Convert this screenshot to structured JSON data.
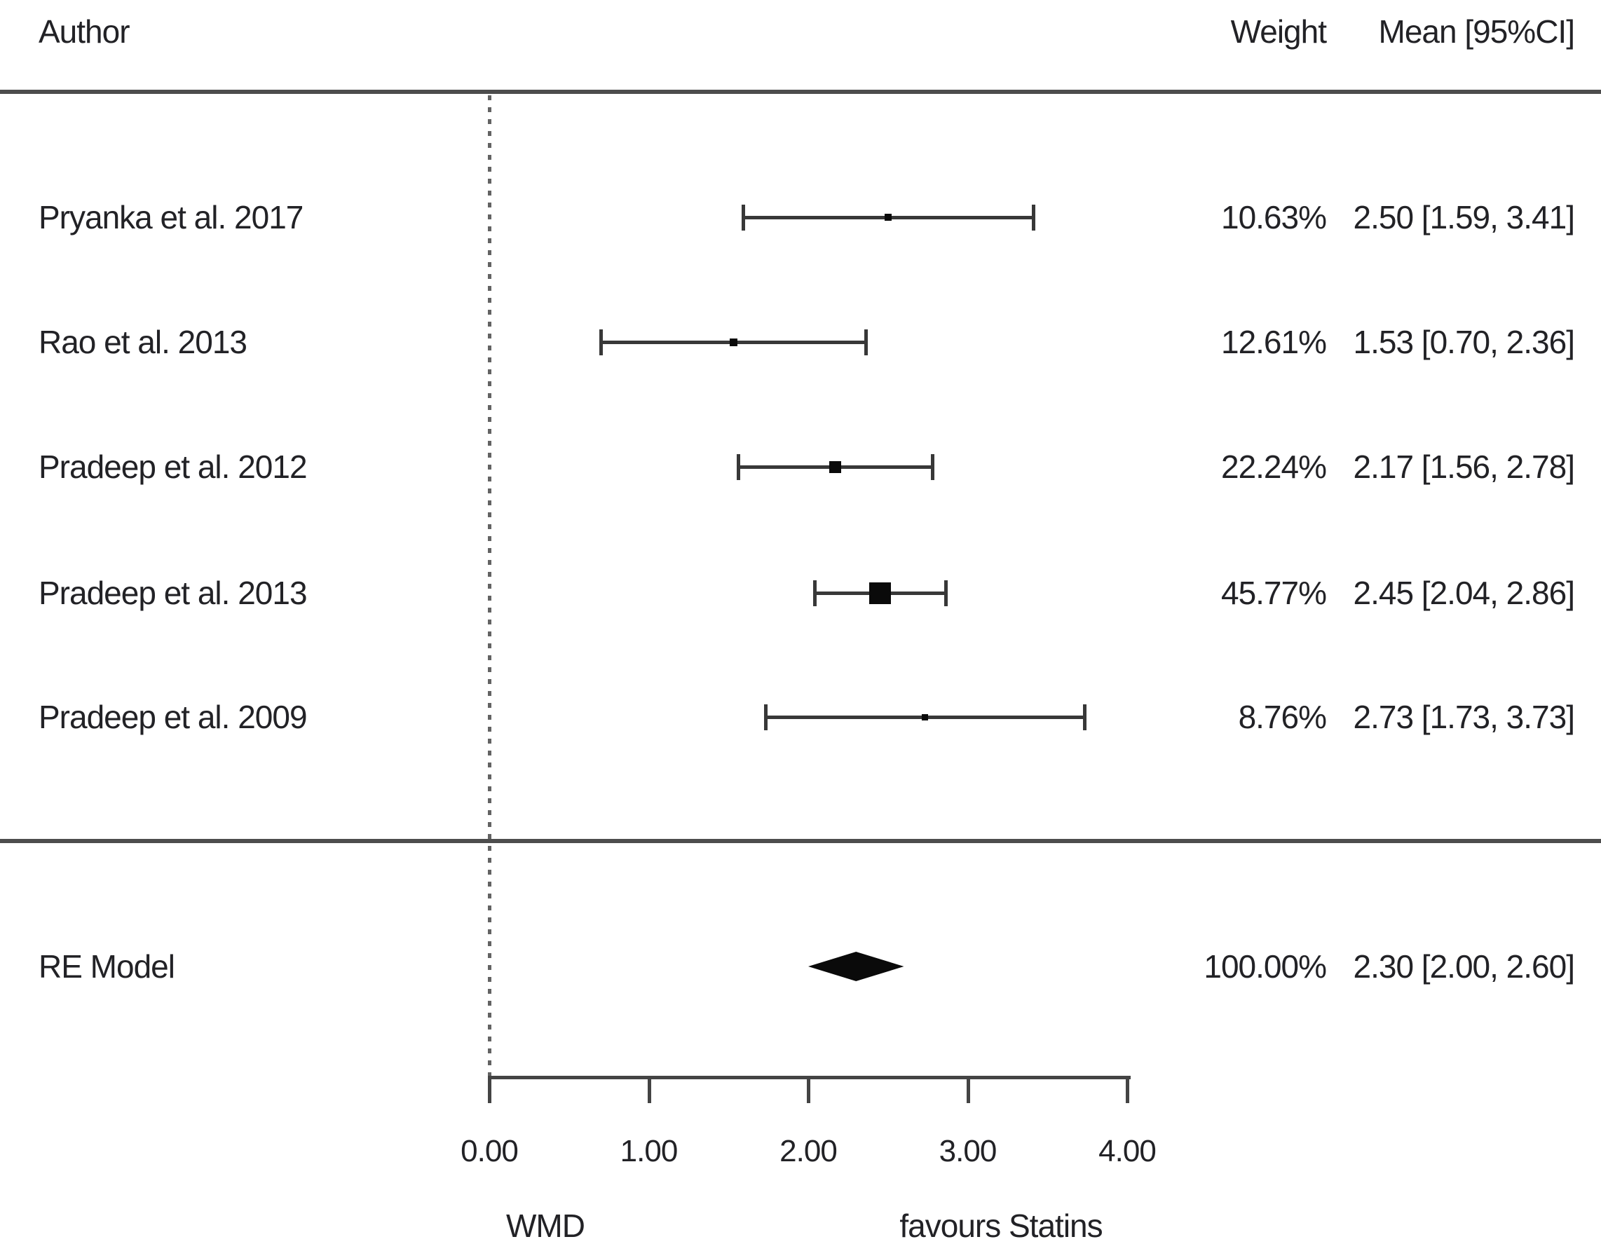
{
  "header": {
    "author": "Author",
    "weight": "Weight",
    "mean": "Mean [95%CI]"
  },
  "chart_data": {
    "type": "forest",
    "title": "",
    "x_axis": {
      "label_left": "WMD",
      "label_right": "favours Statins",
      "ticks": [
        0,
        1,
        2,
        3,
        4
      ],
      "tick_labels": [
        "0.00",
        "1.00",
        "2.00",
        "3.00",
        "4.00"
      ],
      "range": [
        0,
        4
      ],
      "reference_line_x": 0
    },
    "studies": [
      {
        "author": "Pryanka et al. 2017",
        "weight": "10.63%",
        "weight_value": 10.63,
        "mean": 2.5,
        "ci_low": 1.59,
        "ci_high": 3.41,
        "mean_ci_text": "2.50 [1.59, 3.41]"
      },
      {
        "author": "Rao et al. 2013",
        "weight": "12.61%",
        "weight_value": 12.61,
        "mean": 1.53,
        "ci_low": 0.7,
        "ci_high": 2.36,
        "mean_ci_text": "1.53 [0.70, 2.36]"
      },
      {
        "author": "Pradeep et al. 2012",
        "weight": "22.24%",
        "weight_value": 22.24,
        "mean": 2.17,
        "ci_low": 1.56,
        "ci_high": 2.78,
        "mean_ci_text": "2.17 [1.56, 2.78]"
      },
      {
        "author": "Pradeep et al. 2013",
        "weight": "45.77%",
        "weight_value": 45.77,
        "mean": 2.45,
        "ci_low": 2.04,
        "ci_high": 2.86,
        "mean_ci_text": "2.45 [2.04, 2.86]"
      },
      {
        "author": "Pradeep et al. 2009",
        "weight": "8.76%",
        "weight_value": 8.76,
        "mean": 2.73,
        "ci_low": 1.73,
        "ci_high": 3.73,
        "mean_ci_text": "2.73 [1.73, 3.73]"
      }
    ],
    "summary": {
      "label": "RE Model",
      "weight": "100.00%",
      "weight_value": 100.0,
      "mean": 2.3,
      "ci_low": 2.0,
      "ci_high": 2.6,
      "mean_ci_text": "2.30 [2.00, 2.60]"
    }
  },
  "colors": {
    "text": "#222226",
    "rule": "#4d4d4d",
    "ci_line": "#383838",
    "marker": "#0a0a0a",
    "reference_line": "#636363"
  }
}
